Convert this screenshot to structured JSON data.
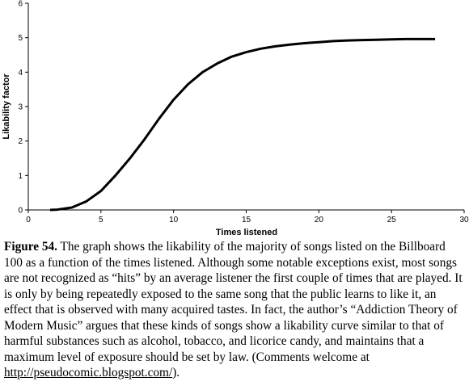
{
  "chart_data": {
    "type": "line",
    "x_label": "Times listened",
    "y_label": "Likability factor",
    "x": [
      1.5,
      2,
      3,
      4,
      5,
      6,
      7,
      8,
      9,
      10,
      11,
      12,
      13,
      14,
      15,
      16,
      17,
      18,
      19,
      20,
      21,
      22,
      23,
      24,
      25,
      26,
      27,
      28
    ],
    "series": [
      {
        "color": "#000000",
        "values": [
          0,
          0.01,
          0.07,
          0.25,
          0.55,
          1.0,
          1.5,
          2.05,
          2.65,
          3.2,
          3.65,
          4.0,
          4.25,
          4.45,
          4.58,
          4.68,
          4.75,
          4.8,
          4.84,
          4.87,
          4.9,
          4.92,
          4.93,
          4.94,
          4.95,
          4.96,
          4.96,
          4.96
        ]
      }
    ],
    "xlim": [
      0,
      30
    ],
    "xticks": [
      0,
      5,
      10,
      15,
      20,
      25,
      30
    ],
    "ylim": [
      0,
      6
    ],
    "yticks": [
      0,
      1,
      2,
      3,
      4,
      5,
      6
    ],
    "grid": false
  },
  "caption": {
    "label": "Figure 54.",
    "text_before": " The graph shows the likability of the majority of songs listed on the Billboard 100 as a function of the times listened. Although some notable exceptions exist, most songs are not recognized as “hits” by an average listener the first couple of times that are played. It is only by being repeatedly exposed to the same song that the public learns to like it, an effect that is observed with many acquired tastes. In fact, the author’s “Addiction Theory of Modern Music” argues that these kinds of songs show a likability curve similar to that of harmful substances such as alcohol, tobacco, and licorice candy, and maintains that a maximum level of exposure should be set by law. (Comments welcome at ",
    "link": "http://pseudocomic.blogspot.com/",
    "text_after": ")."
  }
}
